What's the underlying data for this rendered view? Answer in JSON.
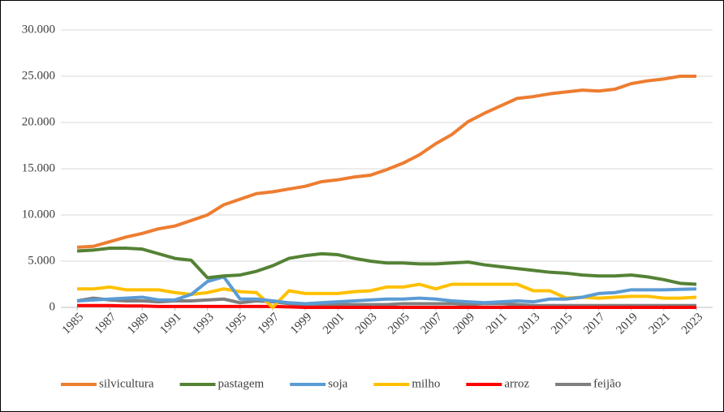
{
  "chart_data": {
    "type": "line",
    "x": [
      1985,
      1986,
      1987,
      1988,
      1989,
      1990,
      1991,
      1992,
      1993,
      1994,
      1995,
      1996,
      1997,
      1998,
      1999,
      2000,
      2001,
      2002,
      2003,
      2004,
      2005,
      2006,
      2007,
      2008,
      2009,
      2010,
      2011,
      2012,
      2013,
      2014,
      2015,
      2016,
      2017,
      2018,
      2019,
      2020,
      2021,
      2022,
      2023
    ],
    "xlim": [
      1985,
      2023
    ],
    "xticks": [
      1985,
      1987,
      1989,
      1991,
      1993,
      1995,
      1997,
      1999,
      2001,
      2003,
      2005,
      2007,
      2009,
      2011,
      2013,
      2015,
      2017,
      2019,
      2021,
      2023
    ],
    "ylim": [
      0,
      30000
    ],
    "yticks": [
      0,
      {
        "value": 5000,
        "label": "5.000"
      },
      {
        "value": 10000,
        "label": "10.000"
      },
      {
        "value": 15000,
        "label": "15.000"
      },
      {
        "value": 20000,
        "label": "20.000"
      },
      {
        "value": 25000,
        "label": "25.000"
      },
      {
        "value": 30000,
        "label": "30.000"
      }
    ],
    "grid": true,
    "legend": "bottom",
    "series": [
      {
        "name": "silvicultura",
        "color": "#ed7d31",
        "values": [
          6500,
          6600,
          7100,
          7600,
          8000,
          8500,
          8800,
          9400,
          10000,
          11100,
          11700,
          12300,
          12500,
          12800,
          13100,
          13600,
          13800,
          14100,
          14300,
          14900,
          15600,
          16500,
          17700,
          18700,
          20100,
          21000,
          21800,
          22600,
          22800,
          23100,
          23300,
          23500,
          23400,
          23600,
          24200,
          24500,
          24700,
          25000,
          25000
        ]
      },
      {
        "name": "pastagem",
        "color": "#548235",
        "values": [
          6100,
          6200,
          6400,
          6400,
          6300,
          5800,
          5300,
          5100,
          3200,
          3400,
          3500,
          3900,
          4500,
          5300,
          5600,
          5800,
          5700,
          5300,
          5000,
          4800,
          4800,
          4700,
          4700,
          4800,
          4900,
          4600,
          4400,
          4200,
          4000,
          3800,
          3700,
          3500,
          3400,
          3400,
          3500,
          3300,
          3000,
          2600,
          2500
        ]
      },
      {
        "name": "soja",
        "color": "#5b9bd5",
        "values": [
          700,
          800,
          900,
          1000,
          1100,
          800,
          800,
          1400,
          2800,
          3300,
          900,
          900,
          700,
          500,
          400,
          500,
          600,
          700,
          800,
          900,
          900,
          1000,
          900,
          700,
          600,
          500,
          600,
          700,
          600,
          900,
          900,
          1100,
          1500,
          1600,
          1900,
          1900,
          1900,
          1950,
          2000
        ]
      },
      {
        "name": "milho",
        "color": "#ffc000",
        "values": [
          2000,
          2000,
          2200,
          1900,
          1900,
          1900,
          1600,
          1400,
          1600,
          2000,
          1700,
          1600,
          0,
          1800,
          1500,
          1500,
          1500,
          1700,
          1800,
          2200,
          2200,
          2500,
          2000,
          2500,
          2500,
          2500,
          2500,
          2500,
          1800,
          1800,
          1000,
          1100,
          1000,
          1100,
          1200,
          1200,
          1000,
          1000,
          1100
        ]
      },
      {
        "name": "arroz",
        "color": "#ff0000",
        "values": [
          200,
          200,
          200,
          150,
          150,
          100,
          100,
          100,
          100,
          100,
          100,
          100,
          100,
          50,
          0,
          0,
          0,
          0,
          0,
          0,
          0,
          0,
          0,
          0,
          0,
          0,
          0,
          0,
          0,
          0,
          0,
          0,
          0,
          0,
          0,
          0,
          0,
          0,
          0
        ]
      },
      {
        "name": "feijão",
        "color": "#7f7f7f",
        "values": [
          700,
          1000,
          800,
          700,
          700,
          600,
          700,
          700,
          800,
          900,
          500,
          700,
          600,
          400,
          300,
          300,
          300,
          300,
          300,
          300,
          400,
          400,
          400,
          400,
          300,
          400,
          400,
          300,
          200,
          200,
          200,
          200,
          200,
          200,
          200,
          200,
          200,
          200,
          200
        ]
      }
    ]
  }
}
